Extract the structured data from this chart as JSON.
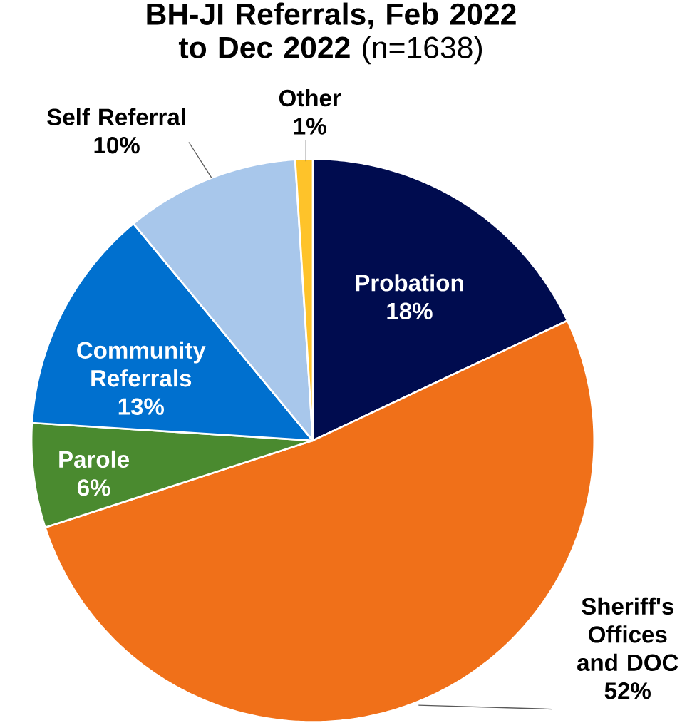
{
  "chart_data": {
    "type": "pie",
    "title": "**BH-JI Referrals, Feb 2022 to Dec 2022** (n=1638)",
    "categories": [
      "Probation",
      "Sheriff's Offices and DOC",
      "Parole",
      "Community Referrals",
      "Self Referral",
      "Other"
    ],
    "values": [
      18,
      52,
      6,
      13,
      10,
      1
    ],
    "colors": [
      "#000c4f",
      "#f07019",
      "#4a8a2f",
      "#0070cf",
      "#a8c7eb",
      "#fec32a"
    ],
    "value_labels": [
      "18%",
      "52%",
      "6%",
      "13%",
      "10%",
      "1%"
    ]
  }
}
